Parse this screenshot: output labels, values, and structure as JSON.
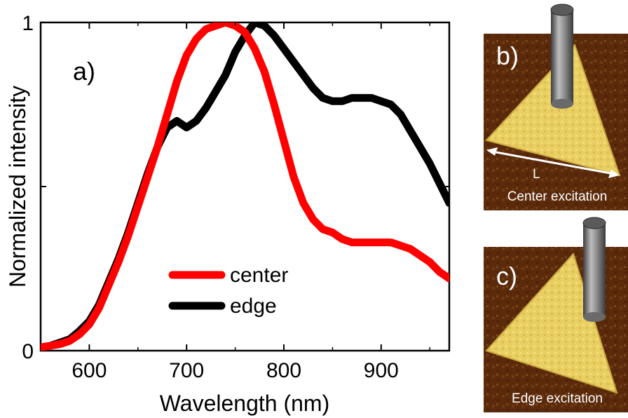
{
  "chart_data": {
    "type": "line",
    "panel_label": "a)",
    "xlabel": "Wavelength (nm)",
    "ylabel": "Normalized intensity",
    "xlim": [
      550,
      970
    ],
    "ylim": [
      0,
      1
    ],
    "x_ticks": [
      600,
      700,
      800,
      900
    ],
    "y_tick_labels": [
      {
        "value": 0,
        "label": "0"
      },
      {
        "value": 1,
        "label": "1"
      }
    ],
    "y_minor_ticks": [
      0.5
    ],
    "grid": false,
    "legend_position": "lower-center",
    "series": [
      {
        "name": "center",
        "color": "#ff0000",
        "x": [
          550,
          560,
          570,
          580,
          590,
          600,
          610,
          620,
          630,
          640,
          650,
          660,
          670,
          680,
          690,
          700,
          710,
          720,
          730,
          740,
          750,
          760,
          770,
          780,
          790,
          800,
          810,
          820,
          830,
          840,
          850,
          860,
          870,
          880,
          890,
          900,
          910,
          920,
          930,
          940,
          950,
          960,
          970
        ],
        "y": [
          0.01,
          0.015,
          0.02,
          0.03,
          0.05,
          0.08,
          0.13,
          0.2,
          0.27,
          0.35,
          0.44,
          0.53,
          0.62,
          0.72,
          0.82,
          0.9,
          0.95,
          0.98,
          0.99,
          1.0,
          0.99,
          0.97,
          0.92,
          0.85,
          0.75,
          0.64,
          0.53,
          0.45,
          0.4,
          0.37,
          0.36,
          0.34,
          0.33,
          0.33,
          0.33,
          0.33,
          0.33,
          0.32,
          0.31,
          0.29,
          0.27,
          0.24,
          0.22
        ]
      },
      {
        "name": "edge",
        "color": "#000000",
        "x": [
          550,
          560,
          570,
          580,
          590,
          600,
          610,
          620,
          630,
          640,
          650,
          660,
          670,
          680,
          690,
          700,
          710,
          720,
          730,
          740,
          750,
          760,
          770,
          780,
          790,
          800,
          810,
          820,
          830,
          840,
          850,
          860,
          870,
          880,
          890,
          900,
          910,
          920,
          930,
          940,
          950,
          960,
          970
        ],
        "y": [
          0.01,
          0.015,
          0.025,
          0.035,
          0.06,
          0.09,
          0.14,
          0.21,
          0.28,
          0.36,
          0.45,
          0.54,
          0.62,
          0.68,
          0.7,
          0.68,
          0.7,
          0.74,
          0.79,
          0.84,
          0.91,
          0.96,
          1.0,
          0.99,
          0.96,
          0.92,
          0.88,
          0.84,
          0.8,
          0.77,
          0.76,
          0.76,
          0.77,
          0.77,
          0.77,
          0.76,
          0.75,
          0.72,
          0.67,
          0.62,
          0.57,
          0.51,
          0.45
        ]
      }
    ]
  },
  "panels": {
    "b": {
      "letter": "b)",
      "measure_label": "L",
      "caption": "Center excitation"
    },
    "c": {
      "letter": "c)",
      "caption": "Edge excitation"
    }
  }
}
